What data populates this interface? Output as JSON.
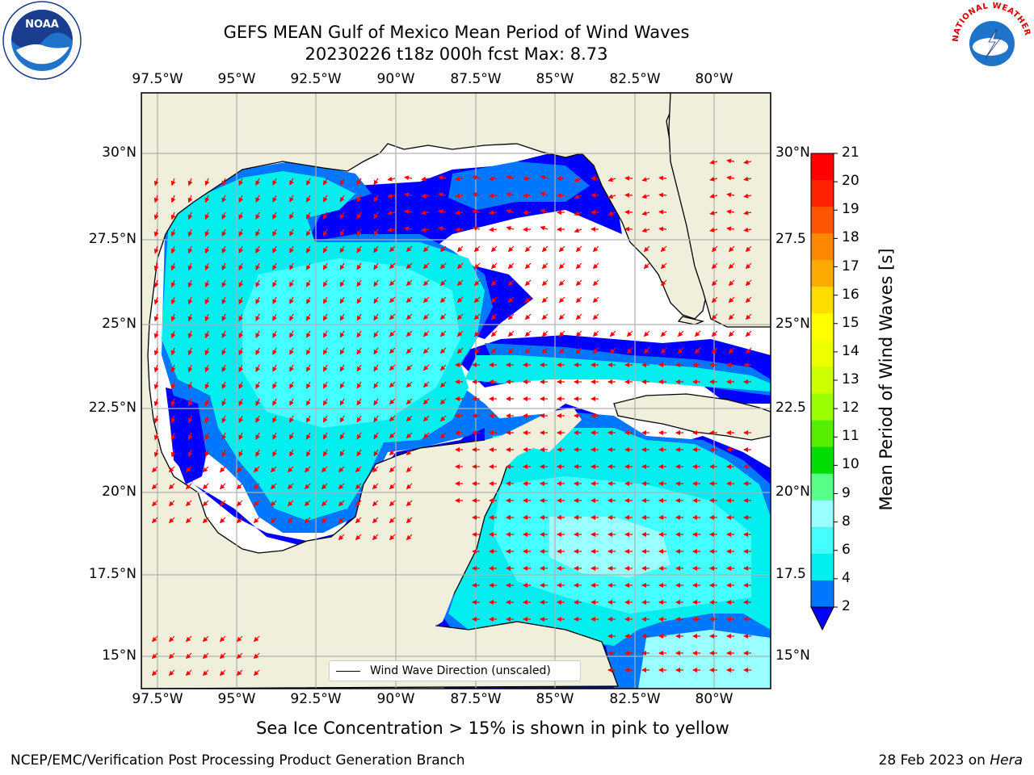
{
  "title": {
    "line1": "GEFS MEAN Gulf of Mexico Mean Period of Wind Waves",
    "line2": "20230226 t18z 000h fcst   Max: 8.73"
  },
  "map": {
    "lon_ticks": [
      "97.5°W",
      "95°W",
      "92.5°W",
      "90°W",
      "87.5°W",
      "85°W",
      "82.5°W",
      "80°W"
    ],
    "lat_ticks_left": [
      "30°N",
      "27.5°N",
      "25°N",
      "22.5°N",
      "20°N",
      "17.5°N",
      "15°N"
    ],
    "lat_ticks_right": [
      "30°N",
      "27.5",
      "25°N",
      "22.5",
      "20°N",
      "17.5",
      "15°N"
    ],
    "legend_label": "Wind Wave Direction (unscaled)",
    "colors": {
      "land": "#efefdc",
      "ocean_no_data": "#ffffff",
      "arrow": "#ff0000",
      "grid": "#b0b0b0"
    }
  },
  "colorbar": {
    "title": "Mean Period of Wind Waves [s]",
    "labels": [
      "21",
      "20",
      "19",
      "18",
      "17",
      "16",
      "15",
      "14",
      "13",
      "12",
      "11",
      "10",
      "9",
      "8",
      "6",
      "4",
      "2"
    ],
    "colors": [
      "#ff0000",
      "#ff2200",
      "#ff5500",
      "#ff8800",
      "#ffaa00",
      "#ffdd00",
      "#ffff00",
      "#eeff00",
      "#ccff00",
      "#99ff00",
      "#55ee00",
      "#00dd00",
      "#55ff88",
      "#99ffff",
      "#44ffff",
      "#00eeee",
      "#0077ff",
      "#0000ff"
    ]
  },
  "ice_note": "Sea Ice Concentration > 15% is shown in pink to yellow",
  "footer": {
    "left": "NCEP/EMC/Verification Post Processing Product Generation Branch",
    "date": "28 Feb 2023 on ",
    "host": "Hera"
  },
  "logos": {
    "noaa_text": "NOAA",
    "nws_text": "NATIONAL WEATHER SERVICE"
  }
}
